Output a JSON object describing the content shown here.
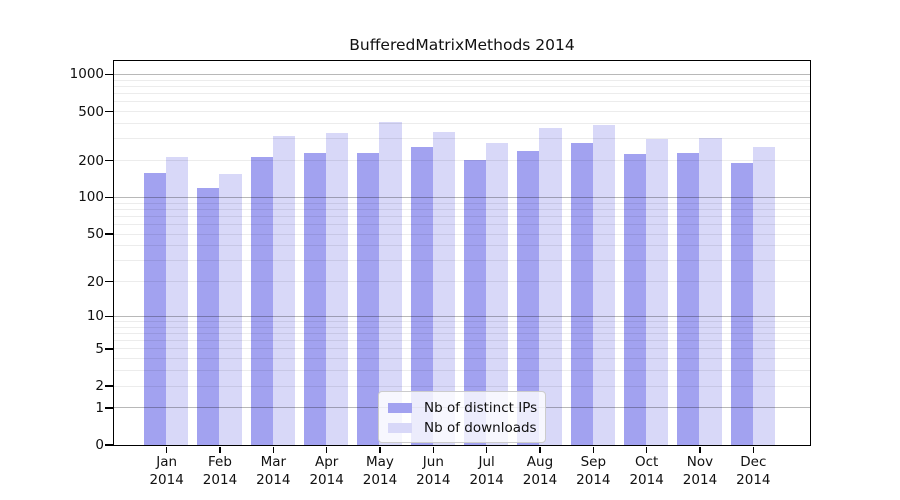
{
  "chart_data": {
    "type": "bar",
    "title": "BufferedMatrixMethods 2014",
    "categories": [
      "Jan",
      "Feb",
      "Mar",
      "Apr",
      "May",
      "Jun",
      "Jul",
      "Aug",
      "Sep",
      "Oct",
      "Nov",
      "Dec"
    ],
    "category_year": "2014",
    "series": [
      {
        "name": "Nb of distinct IPs",
        "color": "#a2a2f0",
        "values": [
          156,
          119,
          212,
          230,
          229,
          254,
          200,
          237,
          277,
          224,
          230,
          189
        ]
      },
      {
        "name": "Nb of downloads",
        "color": "#d8d8f8",
        "values": [
          211,
          153,
          316,
          334,
          408,
          338,
          274,
          367,
          388,
          297,
          302,
          254
        ]
      }
    ],
    "y_axis": {
      "ticks": [
        0,
        1,
        2,
        5,
        10,
        20,
        50,
        100,
        200,
        500,
        1000
      ],
      "scale": "log10(value+1)",
      "top_value": 1270
    },
    "grid": {
      "major_lines": [
        1,
        10,
        100,
        1000
      ],
      "major_color": "rgba(0,0,0,0.28)",
      "minor_color": "rgba(0,0,0,0.075)"
    },
    "legend": {
      "location": "lower center"
    }
  }
}
